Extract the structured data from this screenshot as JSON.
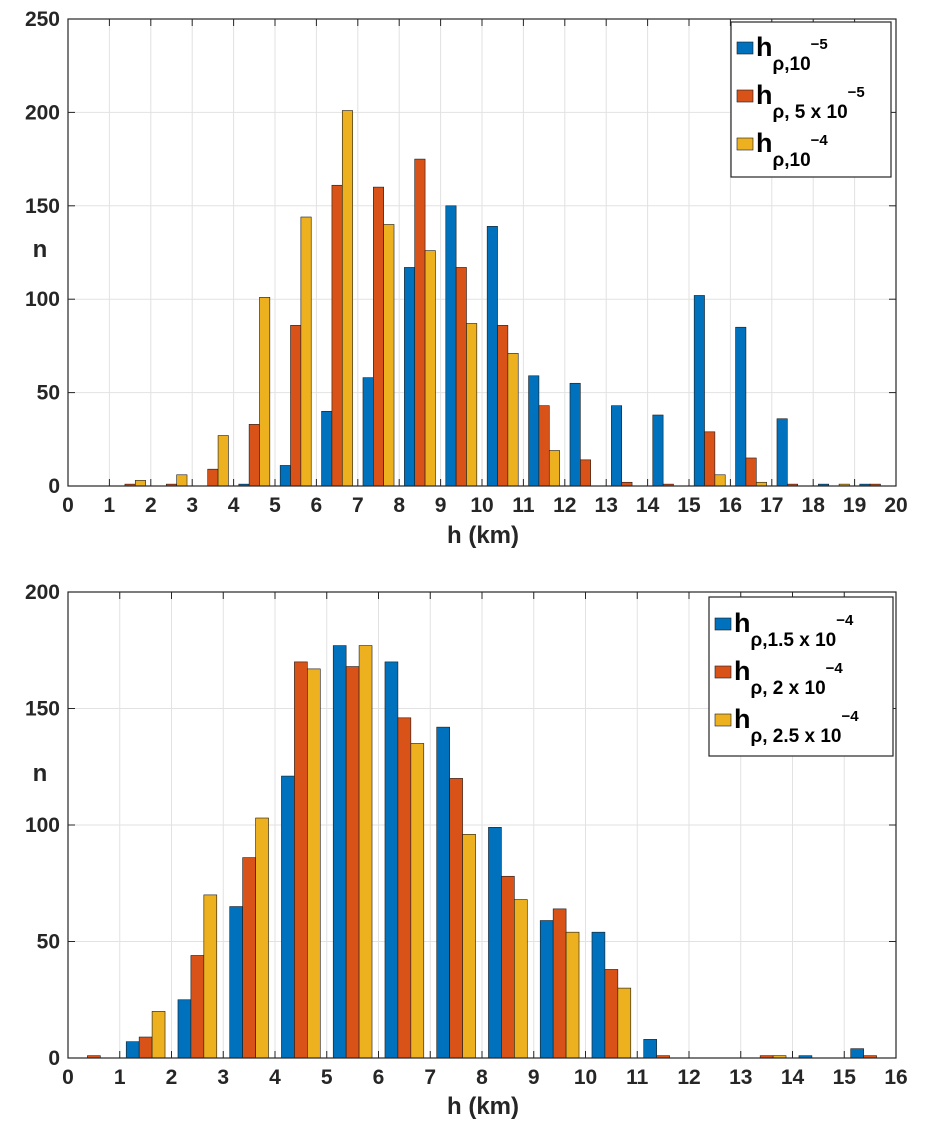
{
  "chart_data": [
    {
      "type": "bar",
      "title": "",
      "xlabel": "h (km)",
      "ylabel": "n",
      "xlim": [
        0,
        20
      ],
      "ylim": [
        0,
        250
      ],
      "xticks": [
        0,
        1,
        2,
        3,
        4,
        5,
        6,
        7,
        8,
        9,
        10,
        11,
        12,
        13,
        14,
        15,
        16,
        17,
        18,
        19,
        20
      ],
      "yticks": [
        0,
        50,
        100,
        150,
        200,
        250
      ],
      "grid": true,
      "legend_position": "top-right",
      "categories": [
        "0.5",
        "1.5",
        "2.5",
        "3.5",
        "4.5",
        "5.5",
        "6.5",
        "7.5",
        "8.5",
        "9.5",
        "10.5",
        "11.5",
        "12.5",
        "13.5",
        "14.5",
        "15.5",
        "16.5",
        "17.5",
        "18.5",
        "19.5"
      ],
      "series": [
        {
          "name": "h ρ,10^-5",
          "legend": {
            "main": "h",
            "sub": "ρ,10",
            "sup": "−5"
          },
          "color": "#0072BD",
          "values": [
            0,
            0,
            0,
            0,
            1,
            11,
            40,
            58,
            117,
            150,
            139,
            59,
            55,
            43,
            38,
            102,
            85,
            36,
            1,
            1
          ]
        },
        {
          "name": "h ρ, 5 x 10^-5",
          "legend": {
            "main": "h",
            "sub": "ρ, 5 x 10",
            "sup": "−5"
          },
          "color": "#D95319",
          "values": [
            0,
            1,
            1,
            9,
            33,
            86,
            161,
            160,
            175,
            117,
            86,
            43,
            14,
            2,
            1,
            29,
            15,
            1,
            0,
            1
          ]
        },
        {
          "name": "h ρ,10^-4",
          "legend": {
            "main": "h",
            "sub": "ρ,10",
            "sup": "−4"
          },
          "color": "#EDB120",
          "values": [
            0,
            3,
            6,
            27,
            101,
            144,
            201,
            140,
            126,
            87,
            71,
            19,
            0,
            0,
            0,
            6,
            2,
            0,
            1,
            0
          ]
        }
      ]
    },
    {
      "type": "bar",
      "title": "",
      "xlabel": "h (km)",
      "ylabel": "n",
      "xlim": [
        0,
        16
      ],
      "ylim": [
        0,
        200
      ],
      "xticks": [
        0,
        1,
        2,
        3,
        4,
        5,
        6,
        7,
        8,
        9,
        10,
        11,
        12,
        13,
        14,
        15,
        16
      ],
      "yticks": [
        0,
        50,
        100,
        150,
        200
      ],
      "grid": true,
      "legend_position": "top-right",
      "categories": [
        "0.5",
        "1.5",
        "2.5",
        "3.5",
        "4.5",
        "5.5",
        "6.5",
        "7.5",
        "8.5",
        "9.5",
        "10.5",
        "11.5",
        "12.5",
        "13.5",
        "14.5",
        "15.5"
      ],
      "series": [
        {
          "name": "h ρ,1.5 x 10^-4",
          "legend": {
            "main": "h",
            "sub": "ρ,1.5 x 10",
            "sup": "−4"
          },
          "color": "#0072BD",
          "values": [
            0,
            7,
            25,
            65,
            121,
            177,
            170,
            142,
            99,
            59,
            54,
            8,
            0,
            0,
            1,
            4
          ]
        },
        {
          "name": "h ρ, 2 x 10^-4",
          "legend": {
            "main": "h",
            "sub": "ρ, 2 x 10",
            "sup": "−4"
          },
          "color": "#D95319",
          "values": [
            1,
            9,
            44,
            86,
            170,
            168,
            146,
            120,
            78,
            64,
            38,
            1,
            0,
            1,
            0,
            1
          ]
        },
        {
          "name": "h ρ, 2.5 x 10^-4",
          "legend": {
            "main": "h",
            "sub": "ρ, 2.5 x 10",
            "sup": "−4"
          },
          "color": "#EDB120",
          "values": [
            0,
            20,
            70,
            103,
            167,
            177,
            135,
            96,
            68,
            54,
            30,
            0,
            0,
            1,
            0,
            0
          ]
        }
      ]
    }
  ]
}
